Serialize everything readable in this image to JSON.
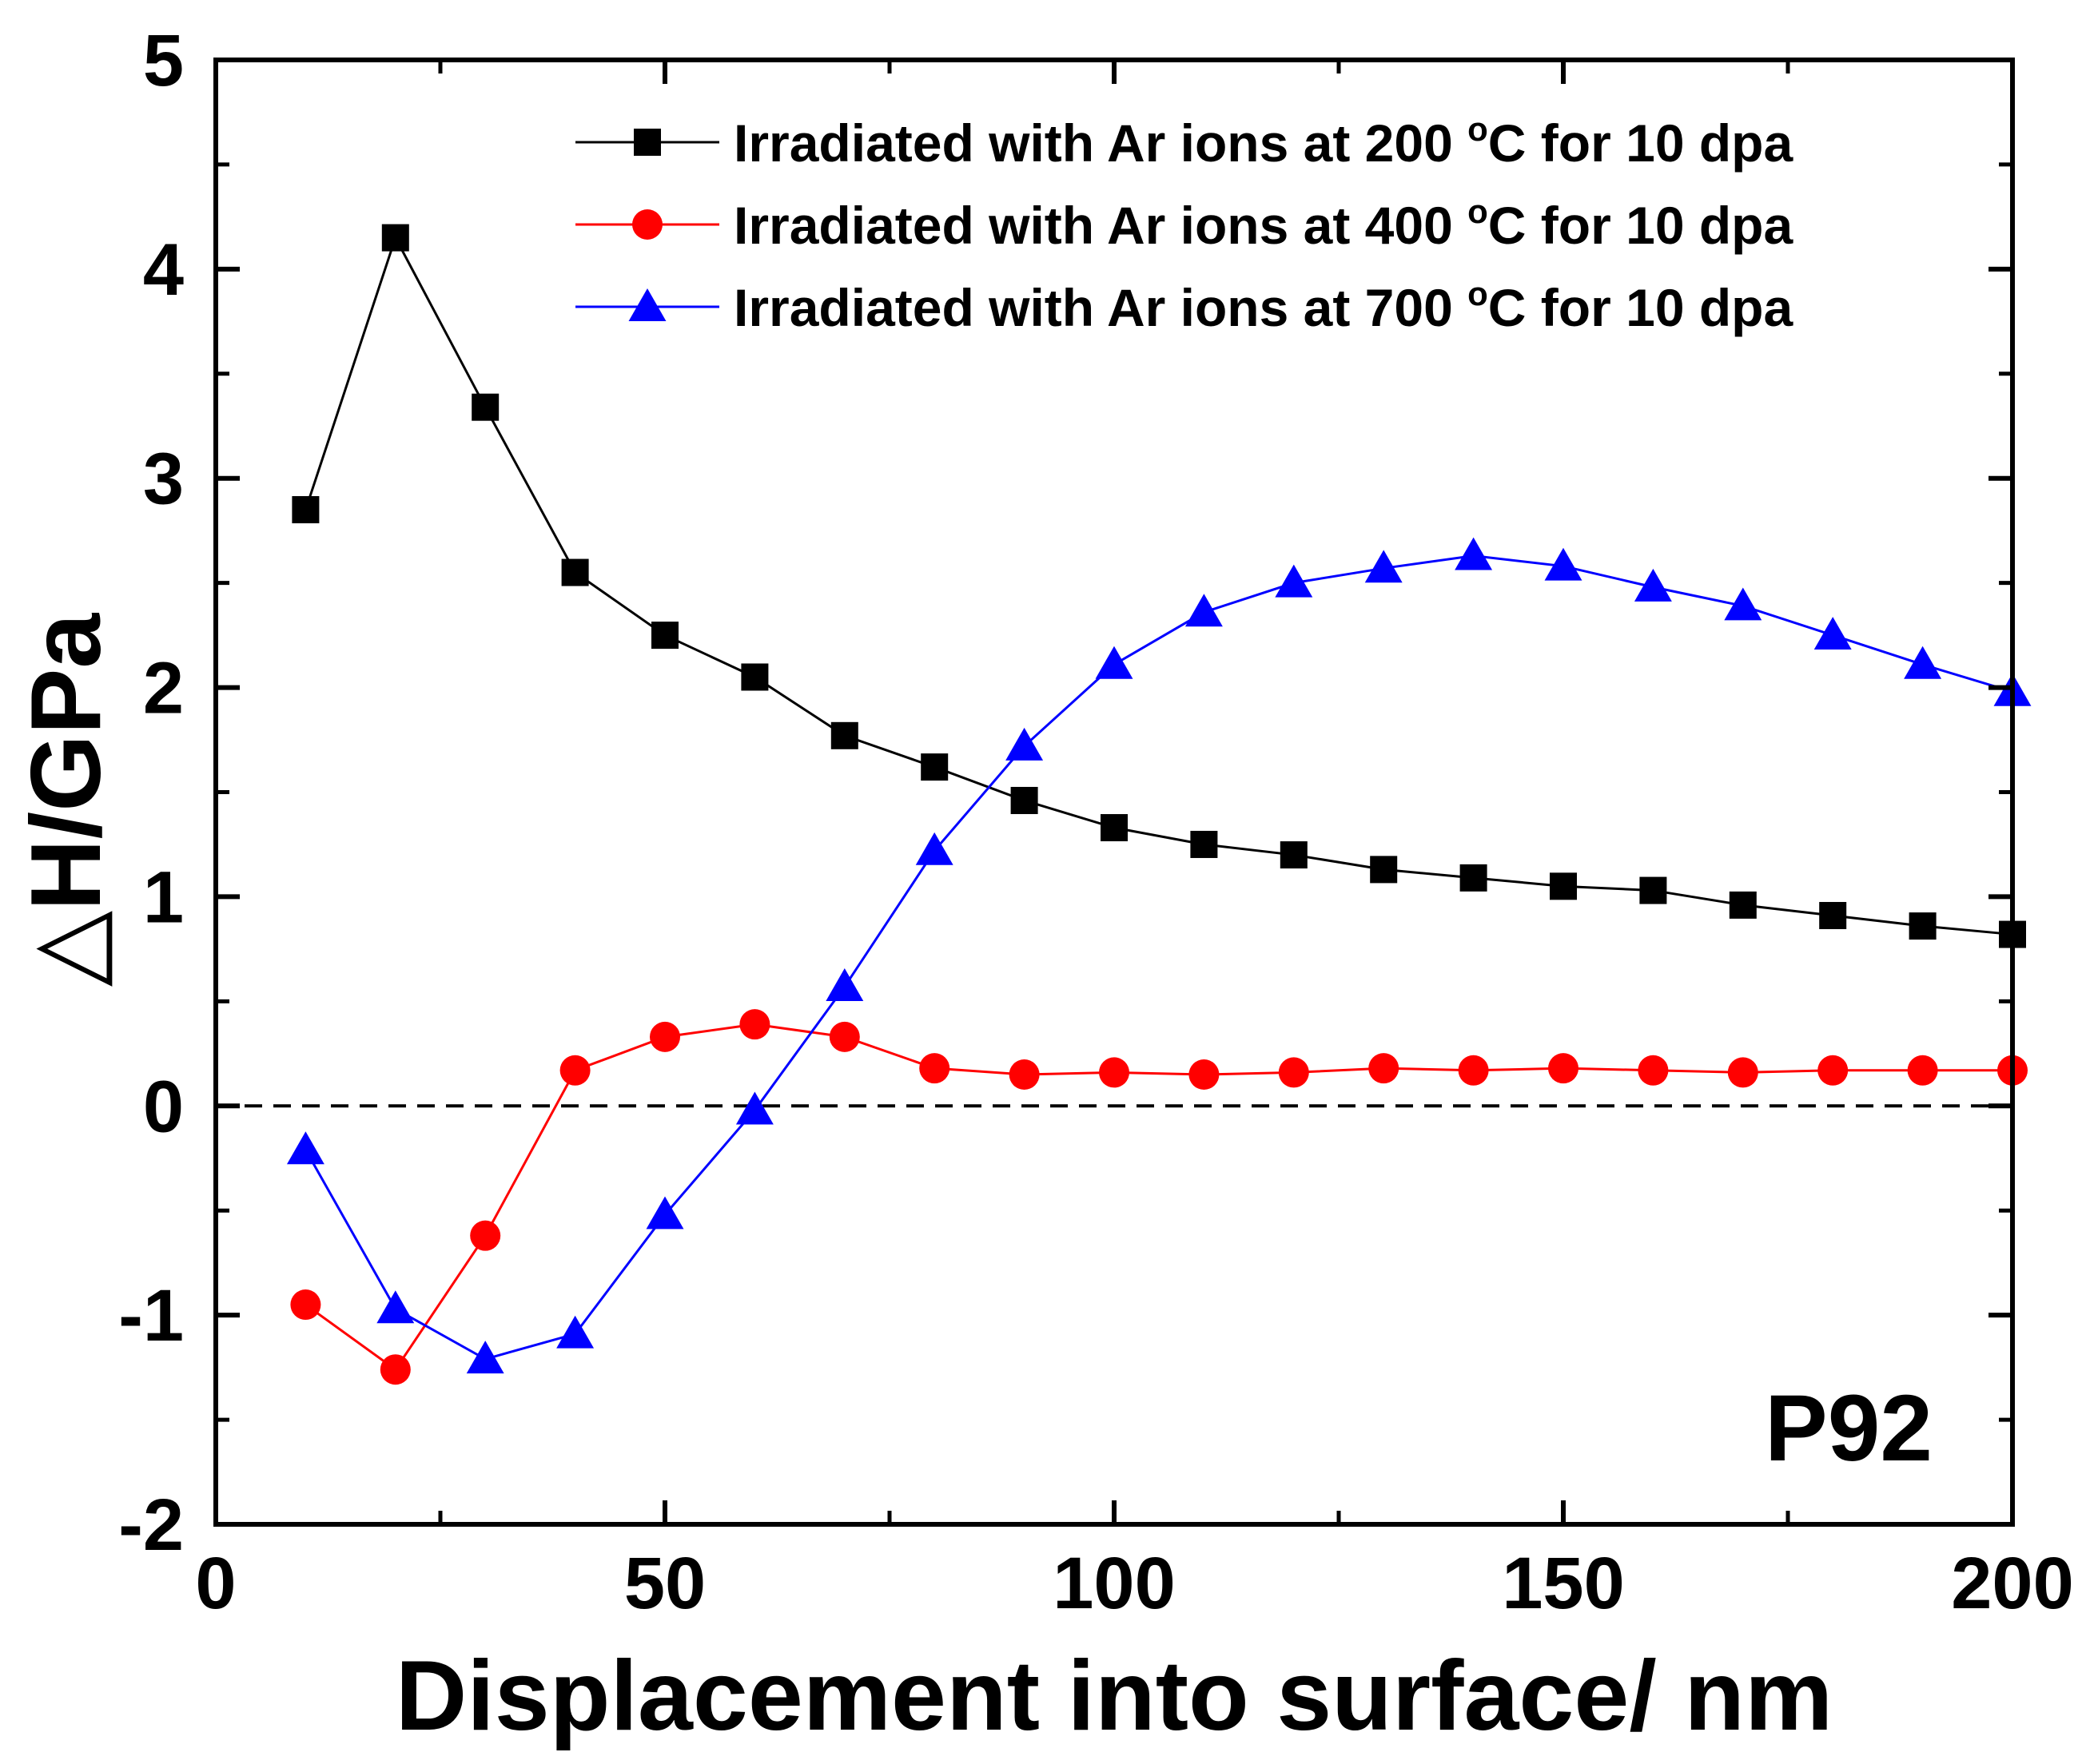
{
  "chart_data": {
    "type": "line",
    "title": "",
    "xlabel": "Displacement into surface/ nm",
    "ylabel": "△H/GPa",
    "xlim": [
      0,
      200
    ],
    "ylim": [
      -2,
      5
    ],
    "xticks": [
      0,
      50,
      100,
      150,
      200
    ],
    "yticks": [
      -2,
      -1,
      0,
      1,
      2,
      3,
      4,
      5
    ],
    "xtick_labels": [
      "0",
      "50",
      "100",
      "150",
      "200"
    ],
    "ytick_labels": [
      "-2",
      "-1",
      "0",
      "1",
      "2",
      "3",
      "4",
      "5"
    ],
    "reference_line": {
      "y": 0,
      "style": "dashed"
    },
    "grid": false,
    "legend_position": "top-right",
    "annotation": "P92",
    "x": [
      10,
      20,
      30,
      40,
      50,
      60,
      70,
      80,
      90,
      100,
      110,
      120,
      130,
      140,
      150,
      160,
      170,
      180,
      190,
      200
    ],
    "series": [
      {
        "name": "Irradiated with Ar ions at 200 °C for 10 dpa",
        "legend_parts": {
          "prefix": "Irradiated with Ar ions at 200 ",
          "degree": "o",
          "suffix": "C for 10 dpa"
        },
        "color": "#000000",
        "marker": "square",
        "values": [
          2.85,
          4.15,
          3.34,
          2.55,
          2.25,
          2.05,
          1.77,
          1.62,
          1.46,
          1.33,
          1.25,
          1.2,
          1.13,
          1.09,
          1.05,
          1.03,
          0.96,
          0.91,
          0.86,
          0.82
        ]
      },
      {
        "name": "Irradiated with Ar ions at 400 °C for 10 dpa",
        "legend_parts": {
          "prefix": "Irradiated with Ar ions at 400 ",
          "degree": "o",
          "suffix": "C for 10 dpa"
        },
        "color": "#ff0000",
        "marker": "circle",
        "values": [
          -0.95,
          -1.26,
          -0.62,
          0.17,
          0.33,
          0.39,
          0.33,
          0.18,
          0.15,
          0.16,
          0.15,
          0.16,
          0.18,
          0.17,
          0.18,
          0.17,
          0.16,
          0.17,
          0.17,
          0.17
        ]
      },
      {
        "name": "Irradiated with Ar ions at 700 °C for 10 dpa",
        "legend_parts": {
          "prefix": "Irradiated with Ar ions at 700 ",
          "degree": "o",
          "suffix": "C for 10 dpa"
        },
        "color": "#0000ff",
        "marker": "triangle",
        "values": [
          -0.21,
          -0.97,
          -1.21,
          -1.09,
          -0.52,
          -0.02,
          0.57,
          1.22,
          1.72,
          2.11,
          2.36,
          2.5,
          2.57,
          2.63,
          2.58,
          2.48,
          2.39,
          2.25,
          2.11,
          1.98
        ]
      }
    ]
  }
}
